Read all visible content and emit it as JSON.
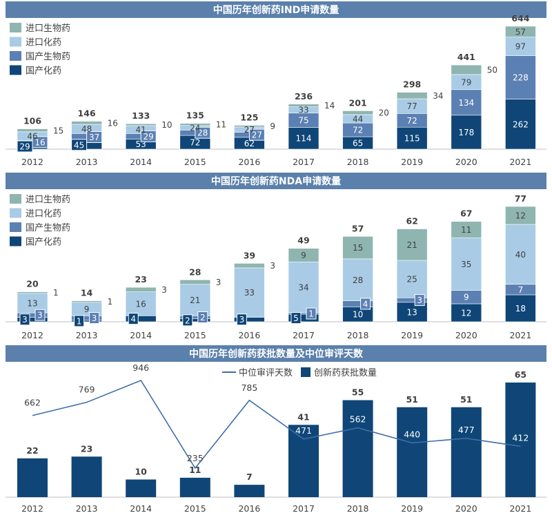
{
  "colors": {
    "header_bg": "#5b80ab",
    "header_text": "#ffffff",
    "imported_bio": "#8fb5b0",
    "imported_chem": "#a9cbe5",
    "domestic_bio": "#5b80b3",
    "domestic_chem": "#0f4677",
    "line": "#3e6ea8",
    "approvals_bar": "#0f4677"
  },
  "chart_data": [
    {
      "type": "bar",
      "stacked": true,
      "title": "中国历年创新药IND申请数量",
      "categories": [
        "2012",
        "2013",
        "2014",
        "2015",
        "2016",
        "2017",
        "2018",
        "2019",
        "2020",
        "2021"
      ],
      "legend": [
        "进口生物药",
        "进口化药",
        "国产生物药",
        "国产化药"
      ],
      "legend_position": "top-left",
      "series": [
        {
          "name": "国产化药",
          "values": [
            29,
            45,
            53,
            72,
            62,
            114,
            65,
            115,
            178,
            262
          ]
        },
        {
          "name": "国产生物药",
          "values": [
            16,
            37,
            29,
            28,
            27,
            75,
            72,
            72,
            134,
            228
          ]
        },
        {
          "name": "进口化药",
          "values": [
            46,
            48,
            41,
            24,
            27,
            33,
            44,
            77,
            79,
            97
          ]
        },
        {
          "name": "进口生物药",
          "values": [
            15,
            16,
            10,
            11,
            9,
            14,
            20,
            34,
            50,
            57
          ]
        }
      ],
      "totals": [
        106,
        146,
        133,
        135,
        125,
        236,
        201,
        298,
        441,
        644
      ],
      "ylim": [
        0,
        700
      ],
      "grid": false
    },
    {
      "type": "bar",
      "stacked": true,
      "title": "中国历年创新药NDA申请数量",
      "categories": [
        "2012",
        "2013",
        "2014",
        "2015",
        "2016",
        "2017",
        "2018",
        "2019",
        "2020",
        "2021"
      ],
      "legend": [
        "进口生物药",
        "进口化药",
        "国产生物药",
        "国产化药"
      ],
      "legend_position": "top-left",
      "series": [
        {
          "name": "国产化药",
          "values": [
            3,
            1,
            4,
            2,
            3,
            5,
            10,
            13,
            12,
            18
          ]
        },
        {
          "name": "国产生物药",
          "values": [
            3,
            3,
            0,
            2,
            0,
            1,
            4,
            3,
            9,
            7
          ]
        },
        {
          "name": "进口化药",
          "values": [
            13,
            9,
            16,
            21,
            33,
            34,
            28,
            25,
            35,
            40
          ]
        },
        {
          "name": "进口生物药",
          "values": [
            1,
            1,
            3,
            3,
            3,
            9,
            15,
            21,
            11,
            12
          ]
        }
      ],
      "totals": [
        20,
        14,
        23,
        28,
        39,
        49,
        57,
        62,
        67,
        77
      ],
      "ylim": [
        0,
        80
      ],
      "grid": false
    },
    {
      "type": "bar+line",
      "title": "中国历年创新药获批数量及中位审评天数",
      "categories": [
        "2012",
        "2013",
        "2014",
        "2015",
        "2016",
        "2017",
        "2018",
        "2019",
        "2020",
        "2021"
      ],
      "legend_position": "top",
      "series": [
        {
          "name": "中位审评天数",
          "type": "line",
          "values": [
            662,
            769,
            946,
            235,
            785,
            471,
            562,
            440,
            477,
            412
          ]
        },
        {
          "name": "创新药获批数量",
          "type": "bar",
          "values": [
            22,
            23,
            10,
            11,
            7,
            41,
            55,
            51,
            51,
            65
          ]
        }
      ],
      "bar_ylim": [
        0,
        70
      ],
      "line_ylim": [
        0,
        1000
      ],
      "grid": false
    }
  ]
}
